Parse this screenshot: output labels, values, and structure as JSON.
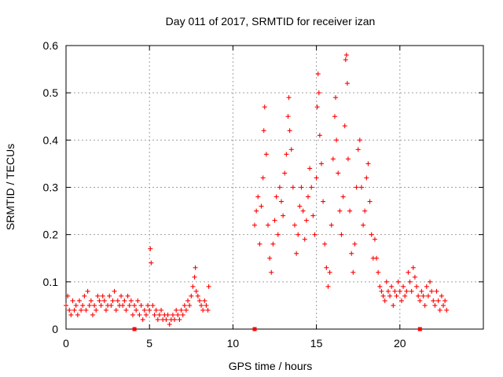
{
  "chart_data": {
    "type": "scatter",
    "title": "Day 011 of 2017, SRMTID for receiver izan",
    "xlabel": "GPS time / hours",
    "ylabel": "SRMTID / TECUs",
    "xlim": [
      0,
      25
    ],
    "ylim": [
      0,
      0.6
    ],
    "xticks": [
      0,
      5,
      10,
      15,
      20
    ],
    "yticks": [
      0,
      0.1,
      0.2,
      0.3,
      0.4,
      0.5,
      0.6
    ],
    "xtick_labels": [
      "0",
      "5",
      "10",
      "15",
      "20"
    ],
    "ytick_labels": [
      "0",
      "0.1",
      "0.2",
      "0.3",
      "0.4",
      "0.5",
      "0.6"
    ],
    "grid": true,
    "marker": "plus",
    "color": "#ff0000",
    "gap_markers_x": [
      4.1,
      11.3,
      21.2
    ],
    "series": [
      {
        "name": "SRMTID",
        "points": [
          [
            0.0,
            0.05
          ],
          [
            0.1,
            0.07
          ],
          [
            0.2,
            0.04
          ],
          [
            0.3,
            0.03
          ],
          [
            0.4,
            0.06
          ],
          [
            0.5,
            0.04
          ],
          [
            0.6,
            0.05
          ],
          [
            0.7,
            0.03
          ],
          [
            0.8,
            0.06
          ],
          [
            0.9,
            0.04
          ],
          [
            1.0,
            0.05
          ],
          [
            1.1,
            0.07
          ],
          [
            1.2,
            0.04
          ],
          [
            1.3,
            0.08
          ],
          [
            1.4,
            0.05
          ],
          [
            1.5,
            0.06
          ],
          [
            1.6,
            0.03
          ],
          [
            1.7,
            0.05
          ],
          [
            1.8,
            0.04
          ],
          [
            1.9,
            0.07
          ],
          [
            2.0,
            0.06
          ],
          [
            2.1,
            0.05
          ],
          [
            2.2,
            0.07
          ],
          [
            2.3,
            0.06
          ],
          [
            2.4,
            0.04
          ],
          [
            2.5,
            0.05
          ],
          [
            2.6,
            0.07
          ],
          [
            2.7,
            0.05
          ],
          [
            2.8,
            0.06
          ],
          [
            2.9,
            0.08
          ],
          [
            3.0,
            0.04
          ],
          [
            3.1,
            0.06
          ],
          [
            3.2,
            0.05
          ],
          [
            3.3,
            0.07
          ],
          [
            3.4,
            0.05
          ],
          [
            3.5,
            0.06
          ],
          [
            3.6,
            0.04
          ],
          [
            3.7,
            0.07
          ],
          [
            3.8,
            0.05
          ],
          [
            3.9,
            0.06
          ],
          [
            4.0,
            0.03
          ],
          [
            4.1,
            0.05
          ],
          [
            4.2,
            0.04
          ],
          [
            4.3,
            0.06
          ],
          [
            4.4,
            0.03
          ],
          [
            4.5,
            0.05
          ],
          [
            4.6,
            0.02
          ],
          [
            4.7,
            0.04
          ],
          [
            4.8,
            0.03
          ],
          [
            4.9,
            0.05
          ],
          [
            5.0,
            0.04
          ],
          [
            5.05,
            0.17
          ],
          [
            5.1,
            0.14
          ],
          [
            5.2,
            0.05
          ],
          [
            5.3,
            0.03
          ],
          [
            5.4,
            0.04
          ],
          [
            5.5,
            0.02
          ],
          [
            5.6,
            0.03
          ],
          [
            5.7,
            0.04
          ],
          [
            5.8,
            0.02
          ],
          [
            5.9,
            0.03
          ],
          [
            6.0,
            0.02
          ],
          [
            6.1,
            0.03
          ],
          [
            6.2,
            0.01
          ],
          [
            6.3,
            0.02
          ],
          [
            6.4,
            0.03
          ],
          [
            6.5,
            0.02
          ],
          [
            6.6,
            0.04
          ],
          [
            6.7,
            0.03
          ],
          [
            6.8,
            0.02
          ],
          [
            6.9,
            0.04
          ],
          [
            7.0,
            0.03
          ],
          [
            7.1,
            0.05
          ],
          [
            7.2,
            0.04
          ],
          [
            7.3,
            0.06
          ],
          [
            7.4,
            0.05
          ],
          [
            7.5,
            0.07
          ],
          [
            7.6,
            0.09
          ],
          [
            7.7,
            0.11
          ],
          [
            7.75,
            0.13
          ],
          [
            7.8,
            0.08
          ],
          [
            7.9,
            0.07
          ],
          [
            8.0,
            0.06
          ],
          [
            8.1,
            0.05
          ],
          [
            8.2,
            0.04
          ],
          [
            8.3,
            0.06
          ],
          [
            8.4,
            0.05
          ],
          [
            8.5,
            0.04
          ],
          [
            8.55,
            0.09
          ],
          [
            11.3,
            0.22
          ],
          [
            11.4,
            0.25
          ],
          [
            11.5,
            0.28
          ],
          [
            11.6,
            0.18
          ],
          [
            11.7,
            0.26
          ],
          [
            11.8,
            0.32
          ],
          [
            11.85,
            0.42
          ],
          [
            11.9,
            0.47
          ],
          [
            12.0,
            0.37
          ],
          [
            12.1,
            0.22
          ],
          [
            12.2,
            0.15
          ],
          [
            12.3,
            0.12
          ],
          [
            12.4,
            0.18
          ],
          [
            12.5,
            0.23
          ],
          [
            12.6,
            0.28
          ],
          [
            12.7,
            0.2
          ],
          [
            12.8,
            0.3
          ],
          [
            12.9,
            0.27
          ],
          [
            13.0,
            0.24
          ],
          [
            13.1,
            0.33
          ],
          [
            13.2,
            0.37
          ],
          [
            13.3,
            0.45
          ],
          [
            13.35,
            0.49
          ],
          [
            13.4,
            0.42
          ],
          [
            13.5,
            0.38
          ],
          [
            13.6,
            0.3
          ],
          [
            13.7,
            0.22
          ],
          [
            13.8,
            0.16
          ],
          [
            13.9,
            0.2
          ],
          [
            14.0,
            0.26
          ],
          [
            14.1,
            0.3
          ],
          [
            14.2,
            0.25
          ],
          [
            14.3,
            0.19
          ],
          [
            14.4,
            0.23
          ],
          [
            14.5,
            0.28
          ],
          [
            14.6,
            0.34
          ],
          [
            14.7,
            0.3
          ],
          [
            14.8,
            0.24
          ],
          [
            14.9,
            0.2
          ],
          [
            15.0,
            0.32
          ],
          [
            15.05,
            0.47
          ],
          [
            15.1,
            0.54
          ],
          [
            15.15,
            0.5
          ],
          [
            15.2,
            0.41
          ],
          [
            15.3,
            0.35
          ],
          [
            15.4,
            0.27
          ],
          [
            15.5,
            0.18
          ],
          [
            15.6,
            0.13
          ],
          [
            15.7,
            0.09
          ],
          [
            15.8,
            0.12
          ],
          [
            15.9,
            0.22
          ],
          [
            16.0,
            0.36
          ],
          [
            16.1,
            0.45
          ],
          [
            16.15,
            0.49
          ],
          [
            16.2,
            0.4
          ],
          [
            16.3,
            0.33
          ],
          [
            16.4,
            0.25
          ],
          [
            16.5,
            0.2
          ],
          [
            16.6,
            0.28
          ],
          [
            16.7,
            0.43
          ],
          [
            16.75,
            0.57
          ],
          [
            16.8,
            0.58
          ],
          [
            16.85,
            0.52
          ],
          [
            16.9,
            0.36
          ],
          [
            17.0,
            0.25
          ],
          [
            17.1,
            0.16
          ],
          [
            17.2,
            0.12
          ],
          [
            17.3,
            0.18
          ],
          [
            17.4,
            0.3
          ],
          [
            17.5,
            0.38
          ],
          [
            17.6,
            0.4
          ],
          [
            17.7,
            0.3
          ],
          [
            17.8,
            0.22
          ],
          [
            17.9,
            0.25
          ],
          [
            18.0,
            0.32
          ],
          [
            18.1,
            0.35
          ],
          [
            18.2,
            0.27
          ],
          [
            18.3,
            0.2
          ],
          [
            18.4,
            0.15
          ],
          [
            18.5,
            0.19
          ],
          [
            18.6,
            0.15
          ],
          [
            18.7,
            0.12
          ],
          [
            18.8,
            0.09
          ],
          [
            18.9,
            0.08
          ],
          [
            19.0,
            0.07
          ],
          [
            19.1,
            0.06
          ],
          [
            19.2,
            0.1
          ],
          [
            19.3,
            0.08
          ],
          [
            19.4,
            0.07
          ],
          [
            19.5,
            0.09
          ],
          [
            19.6,
            0.05
          ],
          [
            19.7,
            0.08
          ],
          [
            19.8,
            0.07
          ],
          [
            19.9,
            0.1
          ],
          [
            20.0,
            0.08
          ],
          [
            20.1,
            0.06
          ],
          [
            20.2,
            0.09
          ],
          [
            20.3,
            0.07
          ],
          [
            20.4,
            0.08
          ],
          [
            20.5,
            0.12
          ],
          [
            20.6,
            0.1
          ],
          [
            20.7,
            0.08
          ],
          [
            20.8,
            0.13
          ],
          [
            20.9,
            0.11
          ],
          [
            21.0,
            0.09
          ],
          [
            21.1,
            0.07
          ],
          [
            21.2,
            0.06
          ],
          [
            21.3,
            0.08
          ],
          [
            21.4,
            0.07
          ],
          [
            21.5,
            0.05
          ],
          [
            21.6,
            0.09
          ],
          [
            21.7,
            0.07
          ],
          [
            21.8,
            0.1
          ],
          [
            21.9,
            0.08
          ],
          [
            22.0,
            0.06
          ],
          [
            22.1,
            0.05
          ],
          [
            22.2,
            0.08
          ],
          [
            22.3,
            0.06
          ],
          [
            22.4,
            0.04
          ],
          [
            22.5,
            0.07
          ],
          [
            22.6,
            0.05
          ],
          [
            22.7,
            0.06
          ],
          [
            22.8,
            0.04
          ]
        ]
      }
    ]
  }
}
